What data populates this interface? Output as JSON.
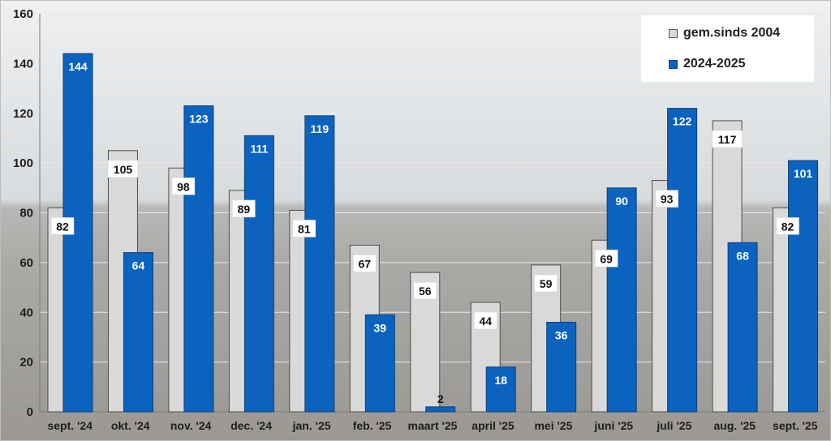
{
  "chart_data": {
    "type": "bar",
    "title": "",
    "xlabel": "",
    "ylabel": "",
    "ylim": [
      0,
      160
    ],
    "y_ticks": [
      0,
      20,
      40,
      60,
      80,
      100,
      120,
      140,
      160
    ],
    "grid": true,
    "legend_position": "top-right",
    "categories": [
      "sept. '24",
      "okt. '24",
      "nov. '24",
      "dec. '24",
      "jan. '25",
      "feb. '25",
      "maart '25",
      "april '25",
      "mei '25",
      "juni '25",
      "juli '25",
      "aug. '25",
      "sept. '25"
    ],
    "series": [
      {
        "name": "gem.sinds 2004",
        "color": "#d9d9d9",
        "values": [
          82,
          105,
          98,
          89,
          81,
          67,
          56,
          44,
          59,
          69,
          93,
          117,
          82
        ]
      },
      {
        "name": "2024-2025",
        "color": "#0b63bf",
        "values": [
          144,
          64,
          123,
          111,
          119,
          39,
          2,
          18,
          36,
          90,
          122,
          68,
          101
        ]
      }
    ]
  },
  "background": {
    "description_colors": {
      "sky": "#d6d9dc",
      "sea": "#a9a9a7",
      "sand": "#9c9894"
    }
  }
}
